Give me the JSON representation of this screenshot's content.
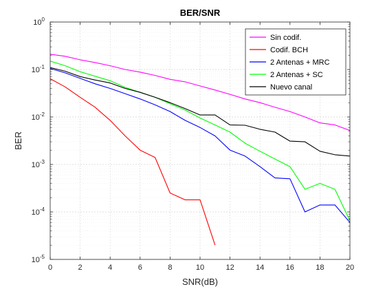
{
  "chart_data": {
    "type": "line",
    "title": "BER/SNR",
    "xlabel": "SNR(dB)",
    "ylabel": "BER",
    "xlim": [
      0,
      20
    ],
    "ylim": [
      1e-05,
      1
    ],
    "yscale": "log",
    "grid": true,
    "legend_position": "top-right",
    "x_ticks": [
      "0",
      "2",
      "4",
      "6",
      "8",
      "10",
      "12",
      "14",
      "16",
      "18",
      "20"
    ],
    "y_ticks": [
      {
        "base": "10",
        "exp": "-5",
        "value": 1e-05
      },
      {
        "base": "10",
        "exp": "-4",
        "value": 0.0001
      },
      {
        "base": "10",
        "exp": "-3",
        "value": 0.001
      },
      {
        "base": "10",
        "exp": "-2",
        "value": 0.01
      },
      {
        "base": "10",
        "exp": "-1",
        "value": 0.1
      },
      {
        "base": "10",
        "exp": "0",
        "value": 1
      }
    ],
    "series": [
      {
        "name": "Sin codif.",
        "color": "#ff00ff",
        "x": [
          0,
          1,
          2,
          3,
          4,
          5,
          6,
          7,
          8,
          9,
          10,
          11,
          12,
          13,
          14,
          15,
          16,
          17,
          18,
          19,
          20
        ],
        "y": [
          0.21,
          0.19,
          0.16,
          0.14,
          0.12,
          0.1,
          0.088,
          0.075,
          0.062,
          0.055,
          0.045,
          0.037,
          0.03,
          0.024,
          0.02,
          0.016,
          0.013,
          0.01,
          0.0075,
          0.0068,
          0.0052
        ]
      },
      {
        "name": "Codif. BCH",
        "color": "#ff0000",
        "x": [
          0,
          1,
          2,
          3,
          4,
          5,
          6,
          7,
          8,
          9,
          10,
          11
        ],
        "y": [
          0.064,
          0.043,
          0.026,
          0.016,
          0.0085,
          0.004,
          0.002,
          0.0014,
          0.00025,
          0.00018,
          0.00018,
          2e-05
        ]
      },
      {
        "name": "2 Antenas + MRC",
        "color": "#0000ff",
        "x": [
          0,
          1,
          2,
          3,
          4,
          5,
          6,
          7,
          8,
          9,
          10,
          11,
          12,
          13,
          14,
          15,
          16,
          17,
          18,
          19,
          20
        ],
        "y": [
          0.105,
          0.085,
          0.065,
          0.05,
          0.04,
          0.031,
          0.024,
          0.018,
          0.013,
          0.0085,
          0.006,
          0.004,
          0.002,
          0.0015,
          0.0009,
          0.00052,
          0.0005,
          0.0001,
          0.00014,
          0.00014,
          6e-05
        ]
      },
      {
        "name": "2 Antenas + SC",
        "color": "#00ff00",
        "x": [
          0,
          1,
          2,
          3,
          4,
          5,
          6,
          7,
          8,
          9,
          10,
          11,
          12,
          13,
          14,
          15,
          16,
          17,
          18,
          19,
          20
        ],
        "y": [
          0.15,
          0.12,
          0.09,
          0.072,
          0.058,
          0.042,
          0.033,
          0.026,
          0.019,
          0.014,
          0.0095,
          0.0068,
          0.0048,
          0.0028,
          0.0019,
          0.0013,
          0.0009,
          0.0003,
          0.0004,
          0.0003,
          6.5e-05
        ]
      },
      {
        "name": "Nuevo canal",
        "color": "#000000",
        "x": [
          0,
          1,
          2,
          3,
          4,
          5,
          6,
          7,
          8,
          9,
          10,
          11,
          12,
          13,
          14,
          15,
          16,
          17,
          18,
          19,
          20
        ],
        "y": [
          0.11,
          0.092,
          0.071,
          0.06,
          0.052,
          0.04,
          0.033,
          0.026,
          0.02,
          0.015,
          0.011,
          0.011,
          0.0068,
          0.0067,
          0.0055,
          0.0048,
          0.0031,
          0.003,
          0.0019,
          0.0016,
          0.0015
        ]
      }
    ]
  }
}
